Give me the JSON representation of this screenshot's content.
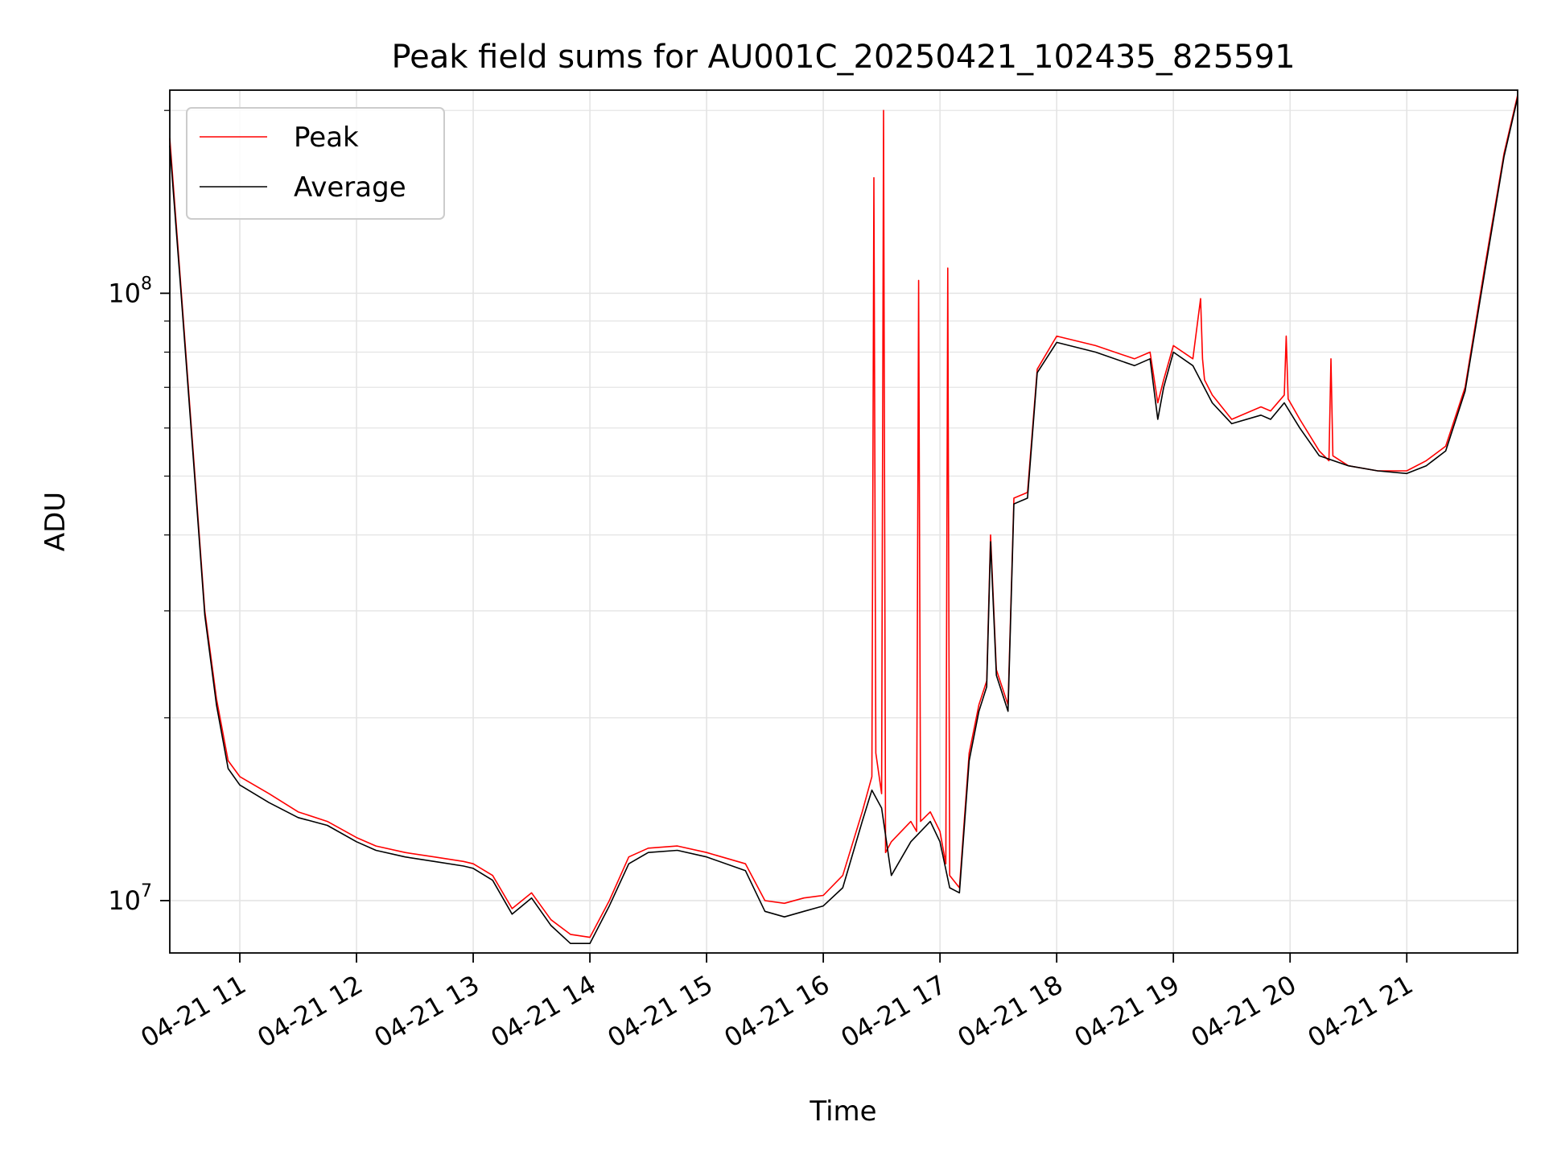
{
  "chart_data": {
    "type": "line",
    "title": "Peak field sums for AU001C_20250421_102435_825591",
    "xlabel": "Time",
    "ylabel": "ADU",
    "y_scale": "log",
    "ylim": [
      8200000,
      216000000
    ],
    "xlim": [
      "2025-04-21 10:24",
      "2025-04-21 21:57"
    ],
    "grid": true,
    "legend_position": "upper-left",
    "x_tick_labels": [
      "04-21 11",
      "04-21 12",
      "04-21 13",
      "04-21 14",
      "04-21 15",
      "04-21 16",
      "04-21 17",
      "04-21 18",
      "04-21 19",
      "04-21 20",
      "04-21 21"
    ],
    "x_ticks": [
      "2025-04-21 11:00",
      "2025-04-21 12:00",
      "2025-04-21 13:00",
      "2025-04-21 14:00",
      "2025-04-21 15:00",
      "2025-04-21 16:00",
      "2025-04-21 17:00",
      "2025-04-21 18:00",
      "2025-04-21 19:00",
      "2025-04-21 20:00",
      "2025-04-21 21:00"
    ],
    "y_tick_labels": [
      {
        "value": 10000000,
        "base": "10",
        "exp": "7"
      },
      {
        "value": 100000000,
        "base": "10",
        "exp": "8"
      }
    ],
    "series": [
      {
        "name": "Peak",
        "color": "#ff0000",
        "x": [
          "2025-04-21 10:24",
          "2025-04-21 10:29",
          "2025-04-21 10:36",
          "2025-04-21 10:42",
          "2025-04-21 10:48",
          "2025-04-21 10:54",
          "2025-04-21 11:00",
          "2025-04-21 11:15",
          "2025-04-21 11:30",
          "2025-04-21 11:45",
          "2025-04-21 12:00",
          "2025-04-21 12:10",
          "2025-04-21 12:25",
          "2025-04-21 12:40",
          "2025-04-21 12:55",
          "2025-04-21 13:00",
          "2025-04-21 13:10",
          "2025-04-21 13:20",
          "2025-04-21 13:30",
          "2025-04-21 13:40",
          "2025-04-21 13:50",
          "2025-04-21 14:00",
          "2025-04-21 14:10",
          "2025-04-21 14:20",
          "2025-04-21 14:30",
          "2025-04-21 14:45",
          "2025-04-21 15:00",
          "2025-04-21 15:20",
          "2025-04-21 15:30",
          "2025-04-21 15:40",
          "2025-04-21 15:50",
          "2025-04-21 16:00",
          "2025-04-21 16:10",
          "2025-04-21 16:20",
          "2025-04-21 16:25",
          "2025-04-21 16:26",
          "2025-04-21 16:27",
          "2025-04-21 16:30",
          "2025-04-21 16:31",
          "2025-04-21 16:32",
          "2025-04-21 16:35",
          "2025-04-21 16:45",
          "2025-04-21 16:48",
          "2025-04-21 16:49",
          "2025-04-21 16:50",
          "2025-04-21 16:55",
          "2025-04-21 17:00",
          "2025-04-21 17:03",
          "2025-04-21 17:04",
          "2025-04-21 17:05",
          "2025-04-21 17:10",
          "2025-04-21 17:15",
          "2025-04-21 17:20",
          "2025-04-21 17:24",
          "2025-04-21 17:26",
          "2025-04-21 17:29",
          "2025-04-21 17:35",
          "2025-04-21 17:38",
          "2025-04-21 17:45",
          "2025-04-21 17:50",
          "2025-04-21 18:00",
          "2025-04-21 18:20",
          "2025-04-21 18:40",
          "2025-04-21 18:48",
          "2025-04-21 18:52",
          "2025-04-21 18:55",
          "2025-04-21 19:00",
          "2025-04-21 19:10",
          "2025-04-21 19:14",
          "2025-04-21 19:15",
          "2025-04-21 19:16",
          "2025-04-21 19:20",
          "2025-04-21 19:30",
          "2025-04-21 19:45",
          "2025-04-21 19:50",
          "2025-04-21 19:57",
          "2025-04-21 19:58",
          "2025-04-21 19:59",
          "2025-04-21 20:05",
          "2025-04-21 20:15",
          "2025-04-21 20:20",
          "2025-04-21 20:21",
          "2025-04-21 20:22",
          "2025-04-21 20:30",
          "2025-04-21 20:45",
          "2025-04-21 21:00",
          "2025-04-21 21:10",
          "2025-04-21 21:20",
          "2025-04-21 21:30",
          "2025-04-21 21:40",
          "2025-04-21 21:50",
          "2025-04-21 21:57"
        ],
        "y": [
          180000000,
          110000000,
          55000000,
          30000000,
          21500000,
          17000000,
          16000000,
          15000000,
          14000000,
          13500000,
          12700000,
          12300000,
          12000000,
          11800000,
          11600000,
          11500000,
          11000000,
          9700000,
          10300000,
          9300000,
          8800000,
          8700000,
          10000000,
          11800000,
          12200000,
          12300000,
          12000000,
          11500000,
          10000000,
          9900000,
          10100000,
          10200000,
          11000000,
          14000000,
          16000000,
          155000000,
          17500000,
          15000000,
          200000000,
          12000000,
          12500000,
          13500000,
          13000000,
          105000000,
          13500000,
          14000000,
          13000000,
          11500000,
          110000000,
          11000000,
          10500000,
          17500000,
          21000000,
          23000000,
          40000000,
          24000000,
          21000000,
          46000000,
          47000000,
          75000000,
          85000000,
          82000000,
          78000000,
          80000000,
          66000000,
          72000000,
          82000000,
          78000000,
          98000000,
          78000000,
          72000000,
          68000000,
          62000000,
          65000000,
          64000000,
          68000000,
          85000000,
          67000000,
          62000000,
          55000000,
          53000000,
          78000000,
          54000000,
          52000000,
          51000000,
          51000000,
          53000000,
          56000000,
          70000000,
          110000000,
          170000000,
          212000000
        ]
      },
      {
        "name": "Average",
        "color": "#000000",
        "x": [
          "2025-04-21 10:24",
          "2025-04-21 10:29",
          "2025-04-21 10:36",
          "2025-04-21 10:42",
          "2025-04-21 10:48",
          "2025-04-21 10:54",
          "2025-04-21 11:00",
          "2025-04-21 11:15",
          "2025-04-21 11:30",
          "2025-04-21 11:45",
          "2025-04-21 12:00",
          "2025-04-21 12:10",
          "2025-04-21 12:25",
          "2025-04-21 12:40",
          "2025-04-21 12:55",
          "2025-04-21 13:00",
          "2025-04-21 13:10",
          "2025-04-21 13:20",
          "2025-04-21 13:30",
          "2025-04-21 13:40",
          "2025-04-21 13:50",
          "2025-04-21 14:00",
          "2025-04-21 14:10",
          "2025-04-21 14:20",
          "2025-04-21 14:30",
          "2025-04-21 14:45",
          "2025-04-21 15:00",
          "2025-04-21 15:20",
          "2025-04-21 15:30",
          "2025-04-21 15:40",
          "2025-04-21 15:50",
          "2025-04-21 16:00",
          "2025-04-21 16:10",
          "2025-04-21 16:20",
          "2025-04-21 16:25",
          "2025-04-21 16:30",
          "2025-04-21 16:35",
          "2025-04-21 16:45",
          "2025-04-21 16:55",
          "2025-04-21 17:00",
          "2025-04-21 17:05",
          "2025-04-21 17:10",
          "2025-04-21 17:15",
          "2025-04-21 17:20",
          "2025-04-21 17:24",
          "2025-04-21 17:26",
          "2025-04-21 17:29",
          "2025-04-21 17:35",
          "2025-04-21 17:38",
          "2025-04-21 17:45",
          "2025-04-21 17:50",
          "2025-04-21 18:00",
          "2025-04-21 18:20",
          "2025-04-21 18:40",
          "2025-04-21 18:48",
          "2025-04-21 18:52",
          "2025-04-21 18:55",
          "2025-04-21 19:00",
          "2025-04-21 19:10",
          "2025-04-21 19:20",
          "2025-04-21 19:30",
          "2025-04-21 19:45",
          "2025-04-21 19:50",
          "2025-04-21 19:57",
          "2025-04-21 20:05",
          "2025-04-21 20:15",
          "2025-04-21 20:30",
          "2025-04-21 20:45",
          "2025-04-21 21:00",
          "2025-04-21 21:10",
          "2025-04-21 21:20",
          "2025-04-21 21:30",
          "2025-04-21 21:40",
          "2025-04-21 21:50",
          "2025-04-21 21:57"
        ],
        "y": [
          175000000,
          108000000,
          54000000,
          29500000,
          21000000,
          16500000,
          15500000,
          14500000,
          13700000,
          13300000,
          12500000,
          12100000,
          11800000,
          11600000,
          11400000,
          11300000,
          10800000,
          9500000,
          10100000,
          9100000,
          8500000,
          8500000,
          9800000,
          11500000,
          12000000,
          12100000,
          11800000,
          11200000,
          9600000,
          9400000,
          9600000,
          9800000,
          10500000,
          13500000,
          15200000,
          14200000,
          11000000,
          12500000,
          13500000,
          12500000,
          10500000,
          10300000,
          17000000,
          20500000,
          22500000,
          39000000,
          23500000,
          20500000,
          45000000,
          46000000,
          74000000,
          83000000,
          80000000,
          76000000,
          78000000,
          62000000,
          70000000,
          80000000,
          76000000,
          66000000,
          61000000,
          63000000,
          62000000,
          66000000,
          60000000,
          54000000,
          52000000,
          51000000,
          50500000,
          52000000,
          55000000,
          69000000,
          108000000,
          168000000,
          210000000
        ]
      }
    ]
  }
}
